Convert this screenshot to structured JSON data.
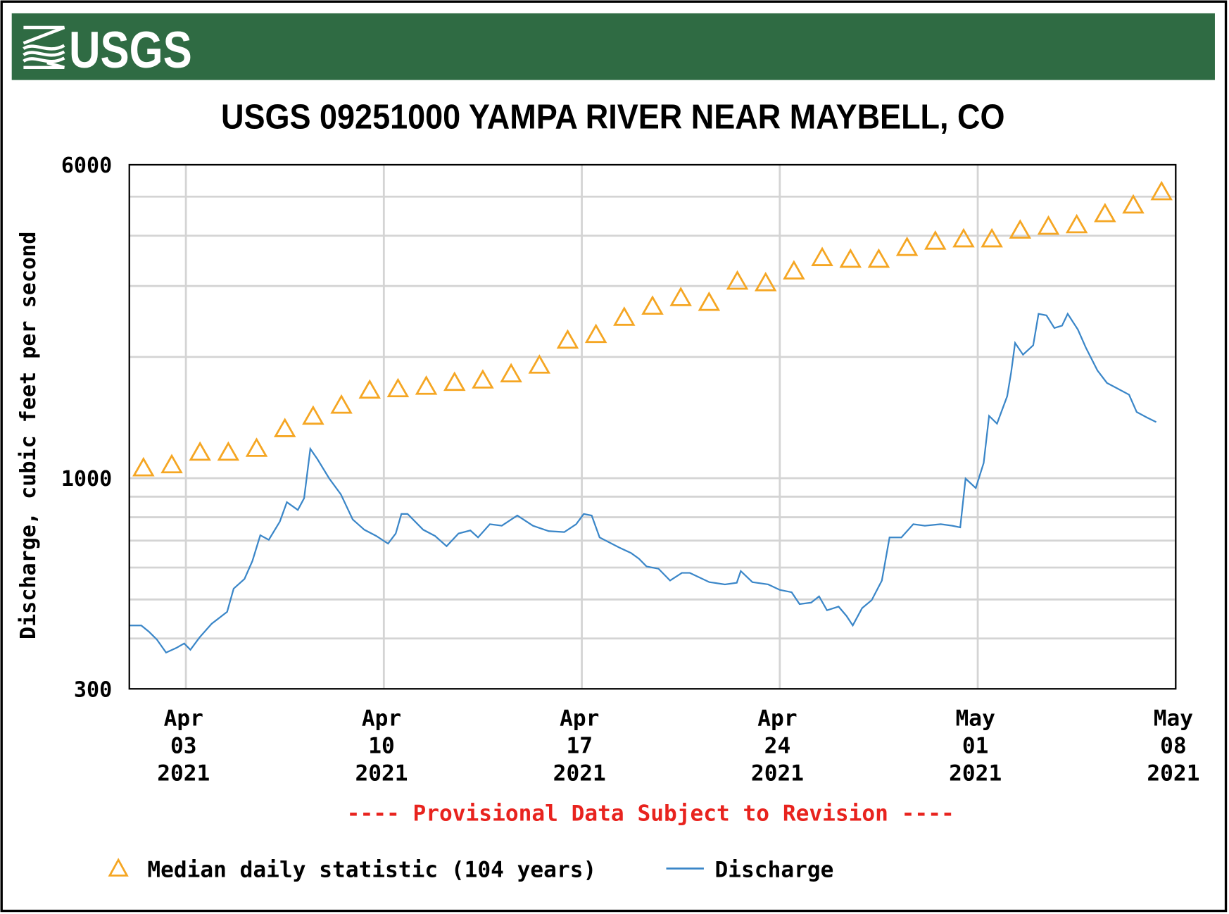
{
  "header": {
    "logo_text": "USGS",
    "brand_color": "#2f6b43"
  },
  "chart_data": {
    "type": "line",
    "title": "USGS 09251000 YAMPA RIVER NEAR MAYBELL, CO",
    "ylabel": "Discharge, cubic feet per second",
    "xlabel": "",
    "yscale": "log",
    "ylim": [
      300,
      6000
    ],
    "xlim_days_from_start": [
      0,
      37
    ],
    "x_start_date": "2021-04-01",
    "grid": true,
    "y_gridlines": [
      400,
      500,
      600,
      700,
      800,
      900,
      1000,
      2000,
      3000,
      4000,
      5000
    ],
    "y_ticks": [
      {
        "value": 6000,
        "label": "6000"
      },
      {
        "value": 1000,
        "label": "1000"
      },
      {
        "value": 300,
        "label": "300"
      }
    ],
    "x_ticks": [
      {
        "day": 2,
        "lines": [
          "Apr",
          "03",
          "2021"
        ]
      },
      {
        "day": 9,
        "lines": [
          "Apr",
          "10",
          "2021"
        ]
      },
      {
        "day": 16,
        "lines": [
          "Apr",
          "17",
          "2021"
        ]
      },
      {
        "day": 23,
        "lines": [
          "Apr",
          "24",
          "2021"
        ]
      },
      {
        "day": 30,
        "lines": [
          "May",
          "01",
          "2021"
        ]
      },
      {
        "day": 37,
        "lines": [
          "May",
          "08",
          "2021"
        ]
      }
    ],
    "annotation": "---- Provisional Data Subject to Revision ----",
    "annotation_color": "#e8231e",
    "legend": {
      "placement": "bottom",
      "items": [
        {
          "label": "Median daily statistic (104 years)",
          "marker": "triangle",
          "color": "#f5a623"
        },
        {
          "label": "Discharge",
          "marker": "line",
          "color": "#3a86c8"
        }
      ]
    },
    "series": [
      {
        "name": "Median daily statistic (104 years)",
        "type": "scatter",
        "color": "#f5a623",
        "x_days": [
          0.5,
          1.5,
          2.5,
          3.5,
          4.5,
          5.5,
          6.5,
          7.5,
          8.5,
          9.5,
          10.5,
          11.5,
          12.5,
          13.5,
          14.5,
          15.5,
          16.5,
          17.5,
          18.5,
          19.5,
          20.5,
          21.5,
          22.5,
          23.5,
          24.5,
          25.5,
          26.5,
          27.5,
          28.5,
          29.5,
          30.5,
          31.5,
          32.5,
          33.5,
          34.5,
          35.5,
          36.5
        ],
        "values": [
          1058,
          1077,
          1157,
          1157,
          1183,
          1324,
          1422,
          1514,
          1650,
          1663,
          1687,
          1725,
          1748,
          1811,
          1903,
          2196,
          2268,
          2502,
          2666,
          2800,
          2725,
          3076,
          3049,
          3261,
          3519,
          3487,
          3487,
          3730,
          3866,
          3917,
          3917,
          4118,
          4211,
          4246,
          4524,
          4753,
          5129
        ]
      },
      {
        "name": "Discharge",
        "type": "line",
        "color": "#3a86c8",
        "points": [
          [
            0,
            431
          ],
          [
            0.42,
            431
          ],
          [
            0.69,
            416
          ],
          [
            0.97,
            398
          ],
          [
            1.3,
            369
          ],
          [
            1.66,
            379
          ],
          [
            1.94,
            389
          ],
          [
            2.16,
            375
          ],
          [
            2.49,
            403
          ],
          [
            2.91,
            435
          ],
          [
            3.46,
            466
          ],
          [
            3.69,
            532
          ],
          [
            4.07,
            562
          ],
          [
            4.35,
            623
          ],
          [
            4.63,
            722
          ],
          [
            4.93,
            703
          ],
          [
            5.32,
            780
          ],
          [
            5.57,
            872
          ],
          [
            5.96,
            834
          ],
          [
            6.18,
            892
          ],
          [
            6.4,
            1183
          ],
          [
            6.65,
            1116
          ],
          [
            7.07,
            998
          ],
          [
            7.48,
            912
          ],
          [
            7.9,
            790
          ],
          [
            8.31,
            745
          ],
          [
            8.73,
            719
          ],
          [
            9.15,
            688
          ],
          [
            9.42,
            729
          ],
          [
            9.62,
            815
          ],
          [
            9.84,
            815
          ],
          [
            10.39,
            745
          ],
          [
            10.81,
            719
          ],
          [
            11.22,
            678
          ],
          [
            11.64,
            729
          ],
          [
            12.06,
            742
          ],
          [
            12.33,
            713
          ],
          [
            12.75,
            769
          ],
          [
            13.17,
            762
          ],
          [
            13.72,
            808
          ],
          [
            14.27,
            762
          ],
          [
            14.83,
            739
          ],
          [
            15.38,
            735
          ],
          [
            15.8,
            769
          ],
          [
            16.07,
            815
          ],
          [
            16.35,
            808
          ],
          [
            16.63,
            713
          ],
          [
            17.32,
            673
          ],
          [
            17.74,
            652
          ],
          [
            18.02,
            631
          ],
          [
            18.29,
            604
          ],
          [
            18.71,
            596
          ],
          [
            19.12,
            557
          ],
          [
            19.54,
            582
          ],
          [
            19.82,
            582
          ],
          [
            20.51,
            552
          ],
          [
            21.06,
            545
          ],
          [
            21.48,
            550
          ],
          [
            21.62,
            588
          ],
          [
            22.03,
            552
          ],
          [
            22.59,
            545
          ],
          [
            23.0,
            528
          ],
          [
            23.42,
            521
          ],
          [
            23.7,
            487
          ],
          [
            24.11,
            491
          ],
          [
            24.39,
            509
          ],
          [
            24.67,
            470
          ],
          [
            25.08,
            480
          ],
          [
            25.36,
            455
          ],
          [
            25.58,
            431
          ],
          [
            25.91,
            476
          ],
          [
            26.25,
            498
          ],
          [
            26.61,
            557
          ],
          [
            26.88,
            713
          ],
          [
            27.3,
            713
          ],
          [
            27.72,
            769
          ],
          [
            28.13,
            762
          ],
          [
            28.69,
            769
          ],
          [
            29.1,
            762
          ],
          [
            29.38,
            755
          ],
          [
            29.57,
            998
          ],
          [
            29.93,
            945
          ],
          [
            30.21,
            1091
          ],
          [
            30.4,
            1428
          ],
          [
            30.68,
            1366
          ],
          [
            31.04,
            1598
          ],
          [
            31.18,
            1828
          ],
          [
            31.32,
            2167
          ],
          [
            31.6,
            2026
          ],
          [
            31.96,
            2138
          ],
          [
            32.15,
            2559
          ],
          [
            32.43,
            2536
          ],
          [
            32.71,
            2360
          ],
          [
            32.98,
            2392
          ],
          [
            33.18,
            2559
          ],
          [
            33.54,
            2339
          ],
          [
            33.82,
            2110
          ],
          [
            34.23,
            1852
          ],
          [
            34.57,
            1724
          ],
          [
            34.93,
            1671
          ],
          [
            35.35,
            1612
          ],
          [
            35.62,
            1460
          ],
          [
            35.98,
            1415
          ],
          [
            36.31,
            1378
          ]
        ]
      }
    ]
  }
}
